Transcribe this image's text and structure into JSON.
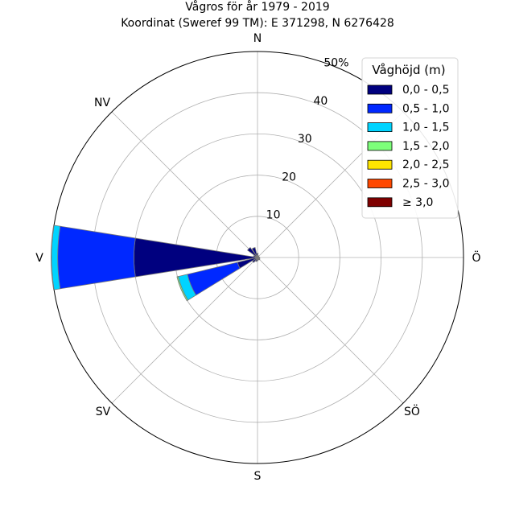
{
  "chart_data": {
    "type": "windrose",
    "title": "Vågros för år 1979 - 2019",
    "subtitle": "Koordinat (Sweref 99 TM): E 371298, N 6276428",
    "directions": [
      "N",
      "NNÖ",
      "NÖ",
      "ÖNÖ",
      "Ö",
      "ÖSÖ",
      "SÖ",
      "SSÖ",
      "S",
      "SSV",
      "SV",
      "VSV",
      "V",
      "VNV",
      "NV",
      "NNV"
    ],
    "compass_labels": [
      "N",
      "NV",
      "V",
      "SV",
      "S",
      "SÖ",
      "Ö",
      "NÖ"
    ],
    "radial_ticks": [
      "10",
      "20",
      "30",
      "40",
      "50%"
    ],
    "r_max": 50,
    "grid": true,
    "legend": {
      "title": "Våghöjd (m)",
      "position": "top-right",
      "items": [
        "0,0 - 0,5",
        "0,5 - 1,0",
        "1,0 - 1,5",
        "1,5 - 2,0",
        "2,0 - 2,5",
        "2,5 - 3,0",
        "≥ 3,0"
      ],
      "colors": [
        "#00007f",
        "#0028ff",
        "#00d4ff",
        "#7dff7a",
        "#ffe500",
        "#ff4800",
        "#7f0000"
      ]
    },
    "series": [
      {
        "name": "0,0 - 0,5",
        "values": [
          1.0,
          0.5,
          0.4,
          0.4,
          0.5,
          0.6,
          0.7,
          0.6,
          0.8,
          1.0,
          1.5,
          5.0,
          30.0,
          1.0,
          3.0,
          2.5
        ]
      },
      {
        "name": "0,5 - 1,0",
        "values": [
          0,
          0,
          0,
          0,
          0,
          0,
          0,
          0,
          0,
          0,
          0,
          12.5,
          18.5,
          0,
          0,
          0
        ]
      },
      {
        "name": "1,0 - 1,5",
        "values": [
          0,
          0,
          0,
          0,
          0,
          0,
          0,
          0,
          0,
          0,
          0,
          2.3,
          1.5,
          0,
          0,
          0
        ]
      },
      {
        "name": "1,5 - 2,0",
        "values": [
          0,
          0,
          0,
          0,
          0,
          0,
          0,
          0,
          0,
          0,
          0,
          0.3,
          0.1,
          0,
          0,
          0
        ]
      },
      {
        "name": "2,0 - 2,5",
        "values": [
          0,
          0,
          0,
          0,
          0,
          0,
          0,
          0,
          0,
          0,
          0,
          0,
          0,
          0,
          0,
          0
        ]
      },
      {
        "name": "2,5 - 3,0",
        "values": [
          0,
          0,
          0,
          0,
          0,
          0,
          0,
          0,
          0,
          0,
          0,
          0,
          0,
          0,
          0,
          0
        ]
      },
      {
        "name": "≥ 3,0",
        "values": [
          0,
          0,
          0,
          0,
          0,
          0,
          0,
          0,
          0,
          0,
          0,
          0,
          0,
          0,
          0,
          0
        ]
      }
    ]
  }
}
